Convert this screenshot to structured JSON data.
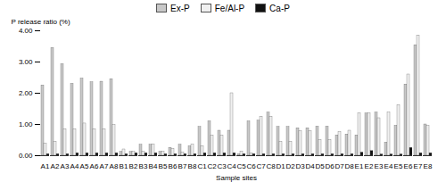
{
  "chart_data": {
    "type": "bar",
    "xlabel": "Sample sites",
    "ylabel": "P release ratio (%)",
    "categories": [
      "A1",
      "A2",
      "A3",
      "A4",
      "A5",
      "A6",
      "A7",
      "A8",
      "B1",
      "B2",
      "B3",
      "B4",
      "B5",
      "B6",
      "B7",
      "B8",
      "C1",
      "C2",
      "C3",
      "C4",
      "C5",
      "C6",
      "C7",
      "C8",
      "D1",
      "D2",
      "D3",
      "D4",
      "D5",
      "D6",
      "D7",
      "D8",
      "E1",
      "E2",
      "E3",
      "E4",
      "E5",
      "E6",
      "E7",
      "E8"
    ],
    "series": [
      {
        "name": "Ex-P",
        "color": "#c8c8c8",
        "values": [
          2.25,
          3.45,
          2.93,
          2.3,
          2.47,
          2.35,
          2.37,
          2.45,
          0.12,
          0.12,
          0.35,
          0.35,
          0.12,
          0.25,
          0.35,
          0.3,
          0.92,
          1.1,
          0.8,
          0.8,
          0.05,
          1.1,
          1.12,
          1.38,
          0.92,
          0.92,
          0.88,
          0.88,
          0.93,
          0.93,
          0.65,
          0.68,
          0.65,
          1.35,
          1.38,
          0.42,
          0.96,
          2.28,
          3.54,
          1.0
        ]
      },
      {
        "name": "Fe/Al-P",
        "color": "#f0f0f0",
        "values": [
          0.38,
          0.45,
          0.85,
          0.85,
          1.03,
          0.85,
          0.85,
          0.98,
          0.2,
          0.12,
          0.12,
          0.35,
          0.12,
          0.22,
          0.1,
          0.35,
          0.3,
          0.65,
          0.65,
          2.0,
          0.13,
          0.08,
          1.25,
          1.25,
          0.45,
          0.45,
          0.78,
          0.78,
          0.5,
          0.5,
          0.75,
          0.8,
          1.35,
          1.35,
          1.2,
          1.38,
          1.62,
          2.6,
          3.85,
          0.95
        ]
      },
      {
        "name": "Ca-P",
        "color": "#111111",
        "values": [
          0.05,
          0.05,
          0.05,
          0.08,
          0.08,
          0.08,
          0.08,
          0.08,
          0.05,
          0.08,
          0.08,
          0.08,
          0.05,
          0.05,
          0.05,
          0.05,
          0.08,
          0.08,
          0.08,
          0.08,
          0.05,
          0.05,
          0.05,
          0.05,
          0.05,
          0.05,
          0.05,
          0.05,
          0.05,
          0.05,
          0.05,
          0.05,
          0.1,
          0.15,
          0.04,
          0.04,
          0.04,
          0.25,
          0.08,
          0.08
        ]
      }
    ],
    "ylim": [
      0,
      4.0
    ],
    "yticks": [
      {
        "value": 0,
        "label": "0.00"
      },
      {
        "value": 1,
        "label": "1.00"
      },
      {
        "value": 2,
        "label": "2.00"
      },
      {
        "value": 3,
        "label": "3.00"
      },
      {
        "value": 4,
        "label": "4.00"
      }
    ],
    "legend": "upper center"
  }
}
